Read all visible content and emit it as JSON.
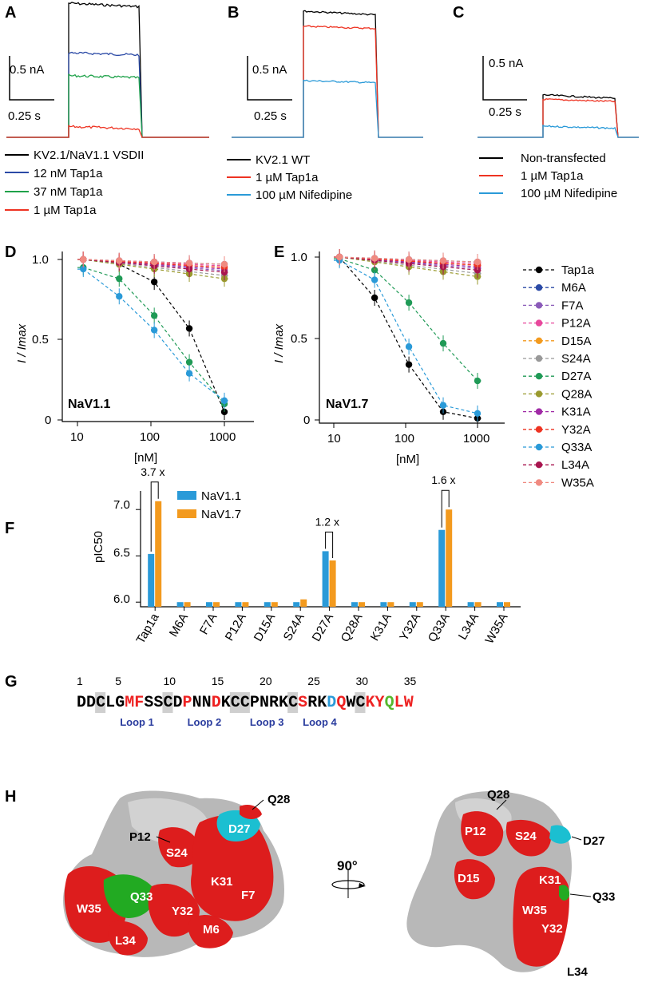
{
  "colors": {
    "black": "#000000",
    "blue": "#2b4aa6",
    "green": "#1fa24a",
    "red": "#ee3322",
    "lightblue": "#2a9ad8",
    "orange": "#f39a1e",
    "teal": "#1bbfd1",
    "surface_red": "#dd1d1d",
    "surface_green": "#22aa22",
    "loop": "#2a3c9e"
  },
  "panel_labels": [
    "A",
    "B",
    "C",
    "D",
    "E",
    "F",
    "G",
    "H"
  ],
  "panelA": {
    "scale_current": "0.5 nA",
    "scale_time": "0.25 s",
    "legend": [
      "KV2.1/NaV1.1 VSDII",
      "12 nM Tap1a",
      "37 nM Tap1a",
      "1 µM Tap1a"
    ],
    "traces": [
      1.0,
      0.63,
      0.46,
      0.08
    ]
  },
  "panelB": {
    "scale_current": "0.5 nA",
    "scale_time": "0.25 s",
    "legend": [
      "KV2.1 WT",
      "1 µM Tap1a",
      "100 µM Nifedipine"
    ],
    "traces": [
      1.0,
      0.88,
      0.45
    ]
  },
  "panelC": {
    "scale_current": "0.5 nA",
    "scale_time": "0.25 s",
    "legend": [
      "Non-transfected",
      "1 µM Tap1a",
      "100 µM Nifedipine"
    ],
    "traces": [
      0.19,
      0.17,
      0.05
    ]
  },
  "dose_response": {
    "y_label": "I / Imax",
    "x_label": "[nM]",
    "y_ticks": [
      "0",
      "0.5",
      "1.0"
    ],
    "x_ticks": [
      "10",
      "100",
      "1000"
    ],
    "x_concentrations": [
      12,
      37,
      111,
      333,
      1000
    ],
    "legend": [
      "Tap1a",
      "M6A",
      "F7A",
      "P12A",
      "D15A",
      "S24A",
      "D27A",
      "Q28A",
      "K31A",
      "Y32A",
      "Q33A",
      "L34A",
      "W35A"
    ],
    "legend_colors": [
      "#000000",
      "#2b4aa6",
      "#8a5ab8",
      "#e8479c",
      "#f39a1e",
      "#999999",
      "#1f9a56",
      "#9a9a2e",
      "#a02aa6",
      "#ee3322",
      "#2a9ad8",
      "#a8154f",
      "#f08a80"
    ],
    "panelD": {
      "title": "NaV1.1",
      "Tap1a": [
        1.0,
        0.97,
        0.86,
        0.57,
        0.05
      ],
      "D27A": [
        0.95,
        0.88,
        0.65,
        0.36,
        0.1
      ],
      "Q33A": [
        0.94,
        0.77,
        0.56,
        0.29,
        0.12
      ]
    },
    "panelE": {
      "title": "NaV1.7",
      "Tap1a": [
        1.0,
        0.75,
        0.34,
        0.05,
        0.01
      ],
      "D27A": [
        0.99,
        0.92,
        0.72,
        0.47,
        0.24
      ],
      "Q33A": [
        0.98,
        0.86,
        0.45,
        0.09,
        0.04
      ]
    }
  },
  "chart_data": {
    "type": "bar",
    "title": "",
    "ylabel": "pIC50",
    "ylim": [
      5.95,
      7.2
    ],
    "y_ticks": [
      "6.0",
      "6.5",
      "7.0"
    ],
    "categories": [
      "Tap1a",
      "M6A",
      "F7A",
      "P12A",
      "D15A",
      "S24A",
      "D27A",
      "Q28A",
      "K31A",
      "Y32A",
      "Q33A",
      "L34A",
      "W35A"
    ],
    "series": [
      {
        "name": "NaV1.1",
        "color": "#2a9ad8",
        "values": [
          6.52,
          6.0,
          6.0,
          6.0,
          6.0,
          6.0,
          6.55,
          6.0,
          6.0,
          6.0,
          6.78,
          6.0,
          6.0
        ]
      },
      {
        "name": "NaV1.7",
        "color": "#f39a1e",
        "values": [
          7.09,
          6.0,
          6.0,
          6.0,
          6.0,
          6.03,
          6.45,
          6.0,
          6.0,
          6.0,
          7.0,
          6.0,
          6.0
        ]
      }
    ],
    "annotations": [
      {
        "label": "3.7 x",
        "category": "Tap1a"
      },
      {
        "label": "1.2 x",
        "category": "D27A"
      },
      {
        "label": "1.6 x",
        "category": "Q33A"
      }
    ],
    "legend": [
      "NaV1.1",
      "NaV1.7"
    ]
  },
  "sequence": {
    "residues": "DDCLGMFSSCDPNNDKCCPNRKCSRKDQWCKYQLW",
    "numbers": [
      "1",
      "5",
      "10",
      "15",
      "20",
      "25",
      "30",
      "35"
    ],
    "loops": [
      "Loop 1",
      "Loop 2",
      "Loop 3",
      "Loop 4"
    ]
  },
  "panelH": {
    "rotation": "90°",
    "left_labels": [
      "Q28",
      "P12",
      "D27",
      "S24",
      "K31",
      "F7",
      "Q33",
      "W35",
      "Y32",
      "M6",
      "L34"
    ],
    "right_labels": [
      "Q28",
      "P12",
      "S24",
      "D27",
      "D15",
      "K31",
      "Q33",
      "W35",
      "Y32",
      "L34"
    ]
  }
}
